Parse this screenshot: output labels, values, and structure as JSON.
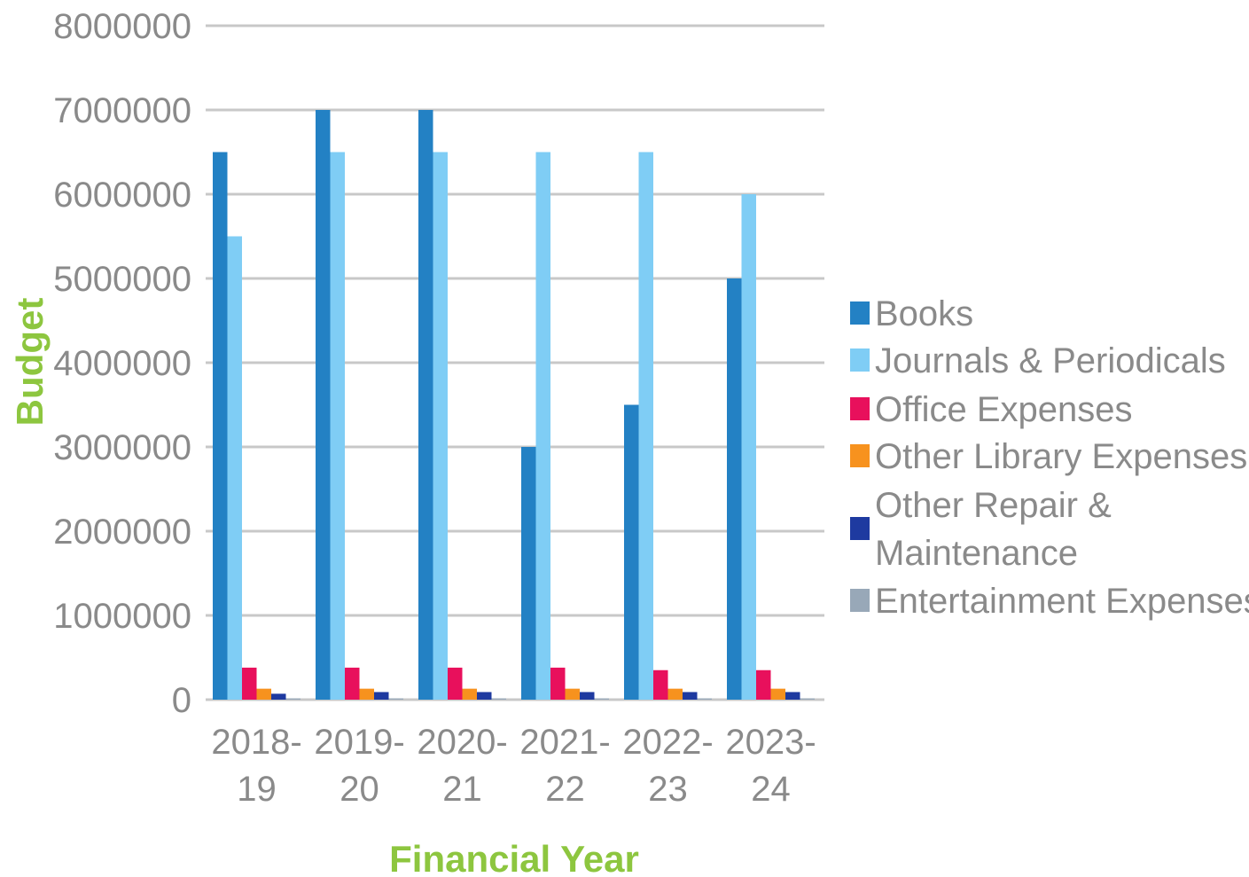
{
  "chart_data": {
    "type": "bar",
    "title": "",
    "xlabel": "Financial Year",
    "ylabel": "Budget",
    "ylim": [
      0,
      8000000
    ],
    "yticks": [
      "0",
      "1000000",
      "2000000",
      "3000000",
      "4000000",
      "5000000",
      "6000000",
      "7000000",
      "8000000"
    ],
    "grid": true,
    "legend_position": "right",
    "categories": [
      {
        "line1": "2018-",
        "line2": "19"
      },
      {
        "line1": "2019-",
        "line2": "20"
      },
      {
        "line1": "2020-",
        "line2": "21"
      },
      {
        "line1": "2021-",
        "line2": "22"
      },
      {
        "line1": "2022-",
        "line2": "23"
      },
      {
        "line1": "2023-",
        "line2": "24"
      }
    ],
    "series": [
      {
        "name": "Books",
        "color": "#2381c4",
        "values": [
          6500000,
          7000000,
          7000000,
          3000000,
          3500000,
          5000000
        ]
      },
      {
        "name": "Journals & Periodicals",
        "color": "#7fcdf5",
        "values": [
          5500000,
          6500000,
          6500000,
          6500000,
          6500000,
          6000000
        ]
      },
      {
        "name": "Office Expenses",
        "color": "#e8105c",
        "values": [
          380000,
          380000,
          380000,
          380000,
          350000,
          350000
        ]
      },
      {
        "name": "Other Library Expenses",
        "color": "#f7921e",
        "values": [
          130000,
          130000,
          130000,
          130000,
          130000,
          130000
        ]
      },
      {
        "name": "Other Repair & Maintenance",
        "name_lines": [
          "Other Repair &",
          "Maintenance"
        ],
        "color": "#1e3aa0",
        "values": [
          70000,
          90000,
          90000,
          90000,
          90000,
          90000
        ]
      },
      {
        "name": "Entertainment  Expenses",
        "color": "#98a8b8",
        "values": [
          15000,
          15000,
          15000,
          15000,
          15000,
          15000
        ]
      }
    ],
    "colors": {
      "axis_title": "#8dc63f",
      "grid": "#c8c8c8",
      "tick_text": "#8a8a8a"
    }
  }
}
